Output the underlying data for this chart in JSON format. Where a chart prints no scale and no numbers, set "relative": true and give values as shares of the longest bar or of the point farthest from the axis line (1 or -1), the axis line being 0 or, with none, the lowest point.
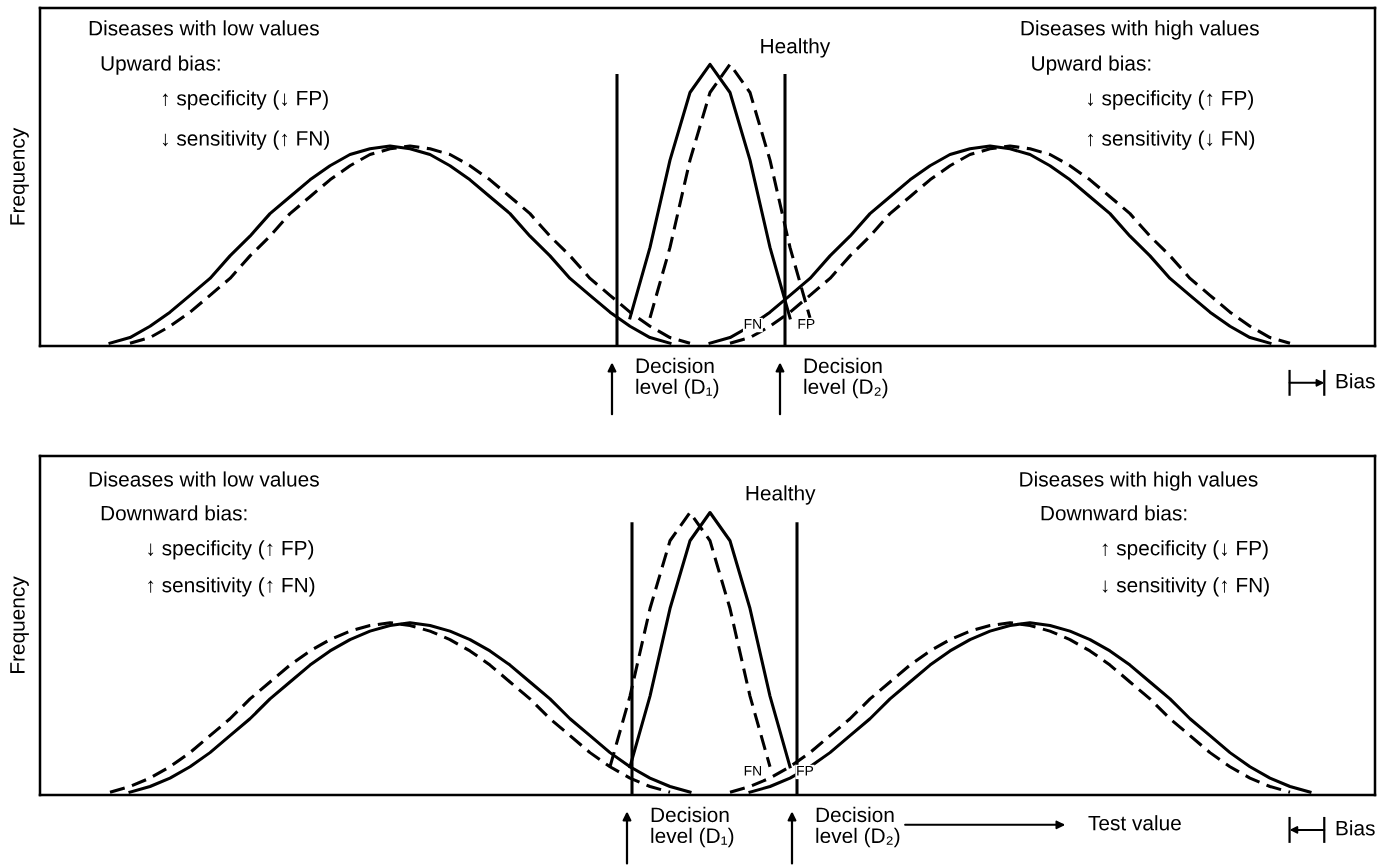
{
  "chart_data": [
    {
      "type": "line",
      "relative": true,
      "ylabel": "Frequency",
      "categories": [
        null,
        null,
        null,
        null,
        null,
        null,
        null,
        null,
        null,
        null,
        null,
        null,
        null,
        null,
        null,
        null,
        null,
        null,
        null,
        null,
        null,
        null,
        null,
        null,
        null,
        null,
        null,
        null,
        null,
        null,
        null,
        null,
        null,
        null,
        null,
        null,
        null,
        null,
        null,
        null,
        null,
        null,
        null,
        null,
        null,
        null,
        null,
        null,
        null,
        null,
        null,
        null,
        null,
        null,
        null,
        null,
        null,
        null,
        null,
        null,
        null,
        null,
        null,
        null,
        null,
        null,
        null
      ],
      "series": [
        {
          "color": "#000000",
          "line_style": "solid",
          "values": [
            null,
            null,
            null,
            0.01,
            0.03,
            0.07,
            0.12,
            0.18,
            0.24,
            0.32,
            0.39,
            0.47,
            0.53,
            0.59,
            0.64,
            0.68,
            0.7,
            0.71,
            0.7,
            0.68,
            0.64,
            0.59,
            0.53,
            0.47,
            0.39,
            0.32,
            0.24,
            0.18,
            0.12,
            0.07,
            0.03,
            0.01,
            null,
            null,
            null,
            null,
            null,
            null,
            null,
            null,
            null,
            null,
            null,
            null,
            null,
            null,
            null,
            null,
            null,
            null,
            null,
            null,
            null,
            null,
            null,
            null,
            null,
            null,
            null,
            null,
            null,
            null,
            null,
            null,
            null,
            null,
            null
          ]
        },
        {
          "color": "#000000",
          "line_style": "dashed",
          "values": [
            null,
            null,
            null,
            null,
            0.01,
            0.03,
            0.07,
            0.12,
            0.18,
            0.24,
            0.32,
            0.39,
            0.47,
            0.53,
            0.59,
            0.64,
            0.68,
            0.7,
            0.71,
            0.7,
            0.68,
            0.64,
            0.59,
            0.53,
            0.47,
            0.39,
            0.32,
            0.24,
            0.18,
            0.12,
            0.07,
            0.03,
            0.01,
            null,
            null,
            null,
            null,
            null,
            null,
            null,
            null,
            null,
            null,
            null,
            null,
            null,
            null,
            null,
            null,
            null,
            null,
            null,
            null,
            null,
            null,
            null,
            null,
            null,
            null,
            null,
            null,
            null,
            null,
            null,
            null,
            null,
            null
          ]
        },
        {
          "color": "#000000",
          "line_style": "solid",
          "values": [
            null,
            null,
            null,
            null,
            null,
            null,
            null,
            null,
            null,
            null,
            null,
            null,
            null,
            null,
            null,
            null,
            null,
            null,
            null,
            null,
            null,
            null,
            null,
            null,
            null,
            null,
            null,
            null,
            null,
            0.1,
            0.35,
            0.66,
            0.9,
            1,
            0.9,
            0.66,
            0.35,
            0.1,
            null,
            null,
            null,
            null,
            null,
            null,
            null,
            null,
            null,
            null,
            null,
            null,
            null,
            null,
            null,
            null,
            null,
            null,
            null,
            null,
            null,
            null,
            null,
            null,
            null,
            null,
            null,
            null,
            null
          ]
        },
        {
          "color": "#000000",
          "line_style": "dashed",
          "values": [
            null,
            null,
            null,
            null,
            null,
            null,
            null,
            null,
            null,
            null,
            null,
            null,
            null,
            null,
            null,
            null,
            null,
            null,
            null,
            null,
            null,
            null,
            null,
            null,
            null,
            null,
            null,
            null,
            null,
            null,
            0.1,
            0.35,
            0.66,
            0.9,
            1,
            0.9,
            0.66,
            0.35,
            0.1,
            null,
            null,
            null,
            null,
            null,
            null,
            null,
            null,
            null,
            null,
            null,
            null,
            null,
            null,
            null,
            null,
            null,
            null,
            null,
            null,
            null,
            null,
            null,
            null,
            null,
            null,
            null,
            null
          ]
        },
        {
          "color": "#000000",
          "line_style": "solid",
          "values": [
            null,
            null,
            null,
            null,
            null,
            null,
            null,
            null,
            null,
            null,
            null,
            null,
            null,
            null,
            null,
            null,
            null,
            null,
            null,
            null,
            null,
            null,
            null,
            null,
            null,
            null,
            null,
            null,
            null,
            null,
            null,
            null,
            null,
            0.01,
            0.03,
            0.07,
            0.12,
            0.18,
            0.24,
            0.32,
            0.39,
            0.47,
            0.53,
            0.59,
            0.64,
            0.68,
            0.7,
            0.71,
            0.7,
            0.68,
            0.64,
            0.59,
            0.53,
            0.47,
            0.39,
            0.32,
            0.24,
            0.18,
            0.12,
            0.07,
            0.03,
            0.01,
            null,
            null,
            null,
            null,
            null
          ]
        },
        {
          "color": "#000000",
          "line_style": "dashed",
          "values": [
            null,
            null,
            null,
            null,
            null,
            null,
            null,
            null,
            null,
            null,
            null,
            null,
            null,
            null,
            null,
            null,
            null,
            null,
            null,
            null,
            null,
            null,
            null,
            null,
            null,
            null,
            null,
            null,
            null,
            null,
            null,
            null,
            null,
            null,
            0.01,
            0.03,
            0.07,
            0.12,
            0.18,
            0.24,
            0.32,
            0.39,
            0.47,
            0.53,
            0.59,
            0.64,
            0.68,
            0.7,
            0.71,
            0.7,
            0.68,
            0.64,
            0.59,
            0.53,
            0.47,
            0.39,
            0.32,
            0.24,
            0.18,
            0.12,
            0.07,
            0.03,
            0.01,
            null,
            null,
            null,
            null
          ]
        }
      ],
      "annotations": [
        "Diseases with low values",
        "Upward bias:",
        "↑ specificity (↓ FP)",
        "↓ sensitivity (↑ FN)",
        "Diseases with high values",
        "Upward bias:",
        "↓ specificity (↑ FP)",
        "↑ sensitivity (↓ FN)",
        "Healthy",
        "FN",
        "FP",
        "Bias",
        "Decision\nlevel (D₁)",
        "Decision\nlevel (D₂)"
      ]
    },
    {
      "type": "line",
      "relative": true,
      "ylabel": "Frequency",
      "categories": [
        null,
        null,
        null,
        null,
        null,
        null,
        null,
        null,
        null,
        null,
        null,
        null,
        null,
        null,
        null,
        null,
        null,
        null,
        null,
        null,
        null,
        null,
        null,
        null,
        null,
        null,
        null,
        null,
        null,
        null,
        null,
        null,
        null,
        null,
        null,
        null,
        null,
        null,
        null,
        null,
        null,
        null,
        null,
        null,
        null,
        null,
        null,
        null,
        null,
        null,
        null,
        null,
        null,
        null,
        null,
        null,
        null,
        null,
        null,
        null,
        null,
        null,
        null,
        null,
        null,
        null,
        null
      ],
      "series": [
        {
          "color": "#000000",
          "line_style": "solid",
          "values": [
            null,
            null,
            null,
            null,
            0.01,
            0.03,
            0.06,
            0.1,
            0.15,
            0.21,
            0.27,
            0.34,
            0.4,
            0.46,
            0.51,
            0.55,
            0.58,
            0.6,
            0.61,
            0.6,
            0.58,
            0.55,
            0.51,
            0.46,
            0.4,
            0.34,
            0.27,
            0.21,
            0.15,
            0.1,
            0.06,
            0.03,
            0.01,
            null,
            null,
            null,
            null,
            null,
            null,
            null,
            null,
            null,
            null,
            null,
            null,
            null,
            null,
            null,
            null,
            null,
            null,
            null,
            null,
            null,
            null,
            null,
            null,
            null,
            null,
            null,
            null,
            null,
            null,
            null,
            null,
            null,
            null
          ]
        },
        {
          "color": "#000000",
          "line_style": "dashed",
          "values": [
            null,
            null,
            null,
            0.01,
            0.03,
            0.06,
            0.1,
            0.15,
            0.21,
            0.27,
            0.34,
            0.4,
            0.46,
            0.51,
            0.55,
            0.58,
            0.6,
            0.61,
            0.6,
            0.58,
            0.55,
            0.51,
            0.46,
            0.4,
            0.34,
            0.27,
            0.21,
            0.15,
            0.1,
            0.06,
            0.03,
            0.01,
            null,
            null,
            null,
            null,
            null,
            null,
            null,
            null,
            null,
            null,
            null,
            null,
            null,
            null,
            null,
            null,
            null,
            null,
            null,
            null,
            null,
            null,
            null,
            null,
            null,
            null,
            null,
            null,
            null,
            null,
            null,
            null,
            null,
            null,
            null
          ]
        },
        {
          "color": "#000000",
          "line_style": "solid",
          "values": [
            null,
            null,
            null,
            null,
            null,
            null,
            null,
            null,
            null,
            null,
            null,
            null,
            null,
            null,
            null,
            null,
            null,
            null,
            null,
            null,
            null,
            null,
            null,
            null,
            null,
            null,
            null,
            null,
            null,
            0.1,
            0.35,
            0.66,
            0.9,
            1,
            0.9,
            0.66,
            0.35,
            0.1,
            null,
            null,
            null,
            null,
            null,
            null,
            null,
            null,
            null,
            null,
            null,
            null,
            null,
            null,
            null,
            null,
            null,
            null,
            null,
            null,
            null,
            null,
            null,
            null,
            null,
            null,
            null,
            null,
            null
          ]
        },
        {
          "color": "#000000",
          "line_style": "dashed",
          "values": [
            null,
            null,
            null,
            null,
            null,
            null,
            null,
            null,
            null,
            null,
            null,
            null,
            null,
            null,
            null,
            null,
            null,
            null,
            null,
            null,
            null,
            null,
            null,
            null,
            null,
            null,
            null,
            null,
            0.1,
            0.35,
            0.66,
            0.9,
            1,
            0.9,
            0.66,
            0.35,
            0.1,
            null,
            null,
            null,
            null,
            null,
            null,
            null,
            null,
            null,
            null,
            null,
            null,
            null,
            null,
            null,
            null,
            null,
            null,
            null,
            null,
            null,
            null,
            null,
            null,
            null,
            null,
            null,
            null,
            null,
            null
          ]
        },
        {
          "color": "#000000",
          "line_style": "solid",
          "values": [
            null,
            null,
            null,
            null,
            null,
            null,
            null,
            null,
            null,
            null,
            null,
            null,
            null,
            null,
            null,
            null,
            null,
            null,
            null,
            null,
            null,
            null,
            null,
            null,
            null,
            null,
            null,
            null,
            null,
            null,
            null,
            null,
            null,
            null,
            null,
            0.01,
            0.03,
            0.06,
            0.1,
            0.15,
            0.21,
            0.27,
            0.34,
            0.4,
            0.46,
            0.51,
            0.55,
            0.58,
            0.6,
            0.61,
            0.6,
            0.58,
            0.55,
            0.51,
            0.46,
            0.4,
            0.34,
            0.27,
            0.21,
            0.15,
            0.1,
            0.06,
            0.03,
            0.01,
            null,
            null,
            null
          ]
        },
        {
          "color": "#000000",
          "line_style": "dashed",
          "values": [
            null,
            null,
            null,
            null,
            null,
            null,
            null,
            null,
            null,
            null,
            null,
            null,
            null,
            null,
            null,
            null,
            null,
            null,
            null,
            null,
            null,
            null,
            null,
            null,
            null,
            null,
            null,
            null,
            null,
            null,
            null,
            null,
            null,
            null,
            0.01,
            0.03,
            0.06,
            0.1,
            0.15,
            0.21,
            0.27,
            0.34,
            0.4,
            0.46,
            0.51,
            0.55,
            0.58,
            0.6,
            0.61,
            0.6,
            0.58,
            0.55,
            0.51,
            0.46,
            0.4,
            0.34,
            0.27,
            0.21,
            0.15,
            0.1,
            0.06,
            0.03,
            0.01,
            null,
            null,
            null,
            null
          ]
        }
      ],
      "annotations": [
        "Diseases with low values",
        "Downward bias:",
        "↓ specificity (↑ FP)",
        "↑ sensitivity (↑ FN)",
        "Diseases with high values",
        "Downward bias:",
        "↑ specificity (↓ FP)",
        "↓ sensitivity (↑ FN)",
        "Healthy",
        "FN",
        "FP",
        "Bias",
        "Decision\nlevel (D₁)",
        "Decision\nlevel (D₂)",
        "Test value"
      ]
    }
  ]
}
